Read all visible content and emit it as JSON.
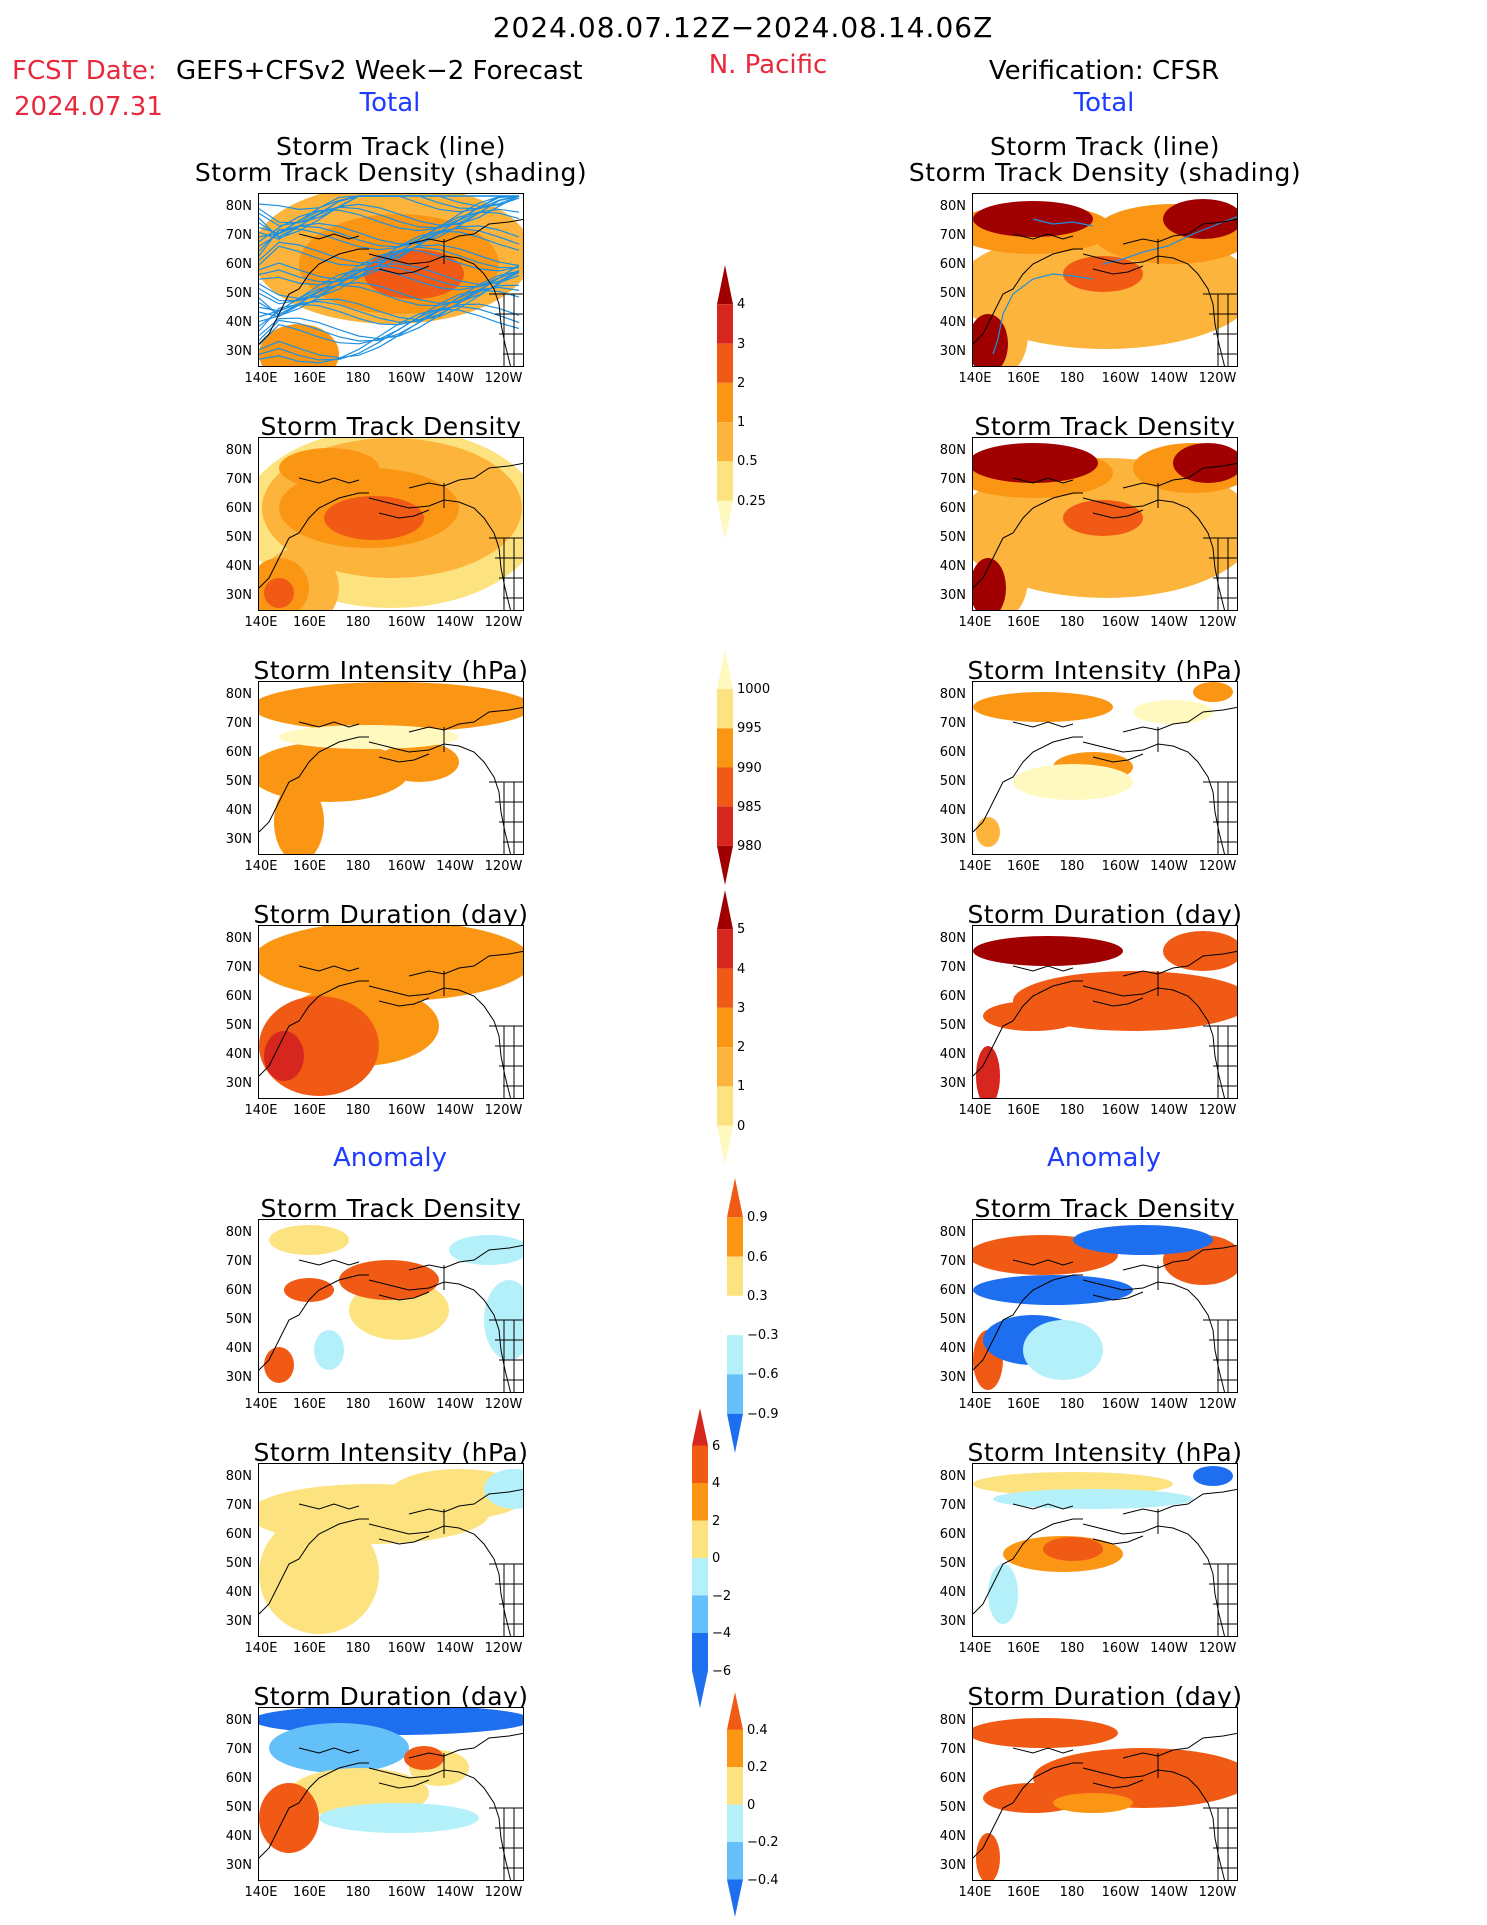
{
  "header": {
    "title": "2024.08.07.12Z−2024.08.14.06Z",
    "fcst_label": "FCST Date:",
    "fcst_model": "GEFS+CFSv2 Week−2 Forecast",
    "fcst_date": "2024.07.31",
    "region": "N. Pacific",
    "verification": "Verification: CFSR",
    "left_section": "Total",
    "right_section": "Total",
    "anomaly_left": "Anomaly",
    "anomaly_right": "Anomaly"
  },
  "axes": {
    "lat_ticks": [
      "80N",
      "70N",
      "60N",
      "50N",
      "40N",
      "30N"
    ],
    "lon_ticks": [
      "140E",
      "160E",
      "180",
      "160W",
      "140W",
      "120W"
    ]
  },
  "colors": {
    "land_outline": "#000000",
    "track_line": "#1e90e0",
    "yellow_light": "#fff9c0",
    "yellow": "#fce380",
    "orange_light": "#fcb43c",
    "orange": "#fa9614",
    "red_orange": "#f05a14",
    "red": "#d7261e",
    "dark_red": "#a00000",
    "blue_light": "#b4f0fa",
    "blue_mid": "#64c0f8",
    "blue": "#1e6ef0"
  },
  "chart_data": [
    {
      "type": "heatmap",
      "id": "fc-track",
      "title": [
        "Storm Track (line)",
        "Storm Track Density (shading)"
      ]
    },
    {
      "type": "heatmap",
      "id": "fc-density",
      "title": [
        "Storm Track Density"
      ]
    },
    {
      "type": "heatmap",
      "id": "fc-intensity",
      "title": [
        "Storm Intensity (hPa)"
      ]
    },
    {
      "type": "heatmap",
      "id": "fc-duration",
      "title": [
        "Storm Duration (day)"
      ]
    },
    {
      "type": "heatmap",
      "id": "fc-anom-density",
      "title": [
        "Storm Track Density"
      ]
    },
    {
      "type": "heatmap",
      "id": "fc-anom-intensity",
      "title": [
        "Storm Intensity (hPa)"
      ]
    },
    {
      "type": "heatmap",
      "id": "fc-anom-duration",
      "title": [
        "Storm Duration (day)"
      ]
    },
    {
      "type": "heatmap",
      "id": "ver-track",
      "title": [
        "Storm Track (line)",
        "Storm Track Density (shading)"
      ]
    },
    {
      "type": "heatmap",
      "id": "ver-density",
      "title": [
        "Storm Track Density"
      ]
    },
    {
      "type": "heatmap",
      "id": "ver-intensity",
      "title": [
        "Storm Intensity (hPa)"
      ]
    },
    {
      "type": "heatmap",
      "id": "ver-duration",
      "title": [
        "Storm Duration (day)"
      ]
    },
    {
      "type": "heatmap",
      "id": "ver-anom-density",
      "title": [
        "Storm Track Density"
      ]
    },
    {
      "type": "heatmap",
      "id": "ver-anom-intensity",
      "title": [
        "Storm Intensity (hPa)"
      ]
    },
    {
      "type": "heatmap",
      "id": "ver-anom-duration",
      "title": [
        "Storm Duration (day)"
      ]
    }
  ],
  "colorbars": [
    {
      "id": "cb-density",
      "labels": [
        "4",
        "3",
        "2",
        "1",
        "0.5",
        "0.25"
      ],
      "colors": [
        "#a00000",
        "#d7261e",
        "#f05a14",
        "#fa9614",
        "#fcb43c",
        "#fce380",
        "#fff9c0"
      ]
    },
    {
      "id": "cb-intensity",
      "labels": [
        "1000",
        "995",
        "990",
        "985",
        "980"
      ],
      "colors": [
        "#fff9c0",
        "#fce380",
        "#fa9614",
        "#f05a14",
        "#d7261e",
        "#a00000"
      ]
    },
    {
      "id": "cb-duration",
      "labels": [
        "5",
        "4",
        "3",
        "2",
        "1",
        "0"
      ],
      "colors": [
        "#a00000",
        "#d7261e",
        "#f05a14",
        "#fa9614",
        "#fcb43c",
        "#fce380",
        "#fff9c0"
      ]
    },
    {
      "id": "cb-anom-density",
      "labels": [
        "0.9",
        "0.6",
        "0.3",
        "−0.3",
        "−0.6",
        "−0.9"
      ],
      "colors": [
        "#f05a14",
        "#fa9614",
        "#fce380",
        "#ffffff",
        "#b4f0fa",
        "#64c0f8",
        "#1e6ef0"
      ]
    },
    {
      "id": "cb-anom-intensity",
      "labels": [
        "6",
        "4",
        "2",
        "0",
        "−2",
        "−4",
        "−6"
      ],
      "colors": [
        "#d7261e",
        "#f05a14",
        "#fa9614",
        "#fce380",
        "#b4f0fa",
        "#64c0f8",
        "#1e6ef0",
        "#1e6ef0"
      ]
    },
    {
      "id": "cb-anom-duration",
      "labels": [
        "0.4",
        "0.2",
        "0",
        "−0.2",
        "−0.4"
      ],
      "colors": [
        "#f05a14",
        "#fa9614",
        "#fce380",
        "#b4f0fa",
        "#64c0f8",
        "#1e6ef0"
      ]
    }
  ]
}
